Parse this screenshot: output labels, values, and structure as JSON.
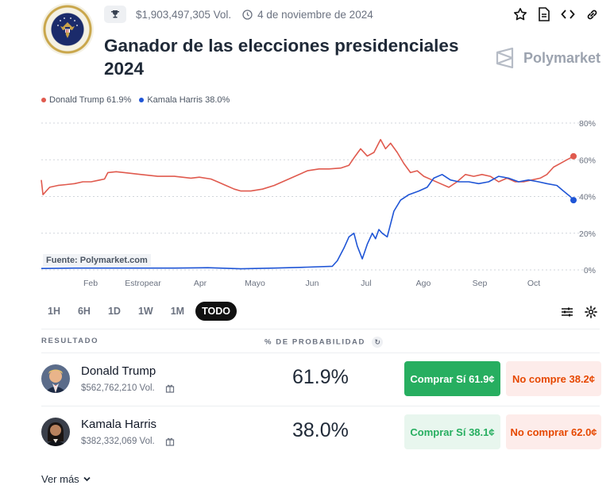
{
  "header": {
    "volume": "$1,903,497,305 Vol.",
    "date": "4 de noviembre de 2024",
    "title": "Ganador de las elecciones presidenciales 2024",
    "brand": "Polymarket",
    "icons": [
      "trophy-icon",
      "clock-icon",
      "star-icon",
      "document-icon",
      "code-icon",
      "link-icon"
    ]
  },
  "legend": [
    {
      "label": "Donald Trump 61.9%",
      "color": "#e05a4e"
    },
    {
      "label": "Kamala Harris 38.0%",
      "color": "#1f55d6"
    }
  ],
  "chart_data": {
    "type": "line",
    "x_ticks": [
      "Feb",
      "Estropear",
      "Apr",
      "Mayo",
      "Jun",
      "Jul",
      "Ago",
      "Sep",
      "Oct"
    ],
    "y_ticks": [
      "0%",
      "20%",
      "40%",
      "60%",
      "80%"
    ],
    "ylim": [
      0,
      80
    ],
    "source": "Fuente: Polymarket.com",
    "series": [
      {
        "name": "Donald Trump",
        "color": "#e05a4e",
        "values": [
          [
            0,
            49
          ],
          [
            1,
            41
          ],
          [
            5,
            45
          ],
          [
            10,
            46
          ],
          [
            15,
            46.5
          ],
          [
            20,
            47
          ],
          [
            25,
            48
          ],
          [
            30,
            48
          ],
          [
            38,
            49.5
          ],
          [
            40,
            53
          ],
          [
            45,
            53.5
          ],
          [
            50,
            53
          ],
          [
            60,
            52
          ],
          [
            70,
            51
          ],
          [
            80,
            51
          ],
          [
            90,
            50
          ],
          [
            95,
            50.5
          ],
          [
            102,
            49.5
          ],
          [
            106,
            48
          ],
          [
            111,
            46
          ],
          [
            116,
            44
          ],
          [
            120,
            43
          ],
          [
            126,
            43
          ],
          [
            133,
            44
          ],
          [
            140,
            46
          ],
          [
            150,
            50
          ],
          [
            160,
            54
          ],
          [
            167,
            55
          ],
          [
            173,
            55
          ],
          [
            180,
            55.5
          ],
          [
            185,
            57
          ],
          [
            188,
            61
          ],
          [
            192,
            66
          ],
          [
            196,
            62
          ],
          [
            200,
            64
          ],
          [
            204,
            71
          ],
          [
            207,
            66
          ],
          [
            210,
            69
          ],
          [
            214,
            64
          ],
          [
            218,
            58
          ],
          [
            222,
            53
          ],
          [
            226,
            54
          ],
          [
            230,
            51
          ],
          [
            235,
            49
          ],
          [
            240,
            47
          ],
          [
            245,
            45
          ],
          [
            250,
            48
          ],
          [
            255,
            52
          ],
          [
            260,
            51
          ],
          [
            265,
            52
          ],
          [
            270,
            51
          ],
          [
            275,
            48
          ],
          [
            280,
            50
          ],
          [
            285,
            48
          ],
          [
            290,
            48
          ],
          [
            295,
            49
          ],
          [
            300,
            50
          ],
          [
            304,
            52
          ],
          [
            308,
            56
          ],
          [
            312,
            58
          ],
          [
            316,
            60
          ],
          [
            320,
            61.9
          ]
        ]
      },
      {
        "name": "Kamala Harris",
        "color": "#1f55d6",
        "values": [
          [
            0,
            0.8
          ],
          [
            20,
            1
          ],
          [
            40,
            1
          ],
          [
            60,
            1
          ],
          [
            80,
            1
          ],
          [
            100,
            1.2
          ],
          [
            120,
            0.6
          ],
          [
            140,
            1
          ],
          [
            160,
            1.5
          ],
          [
            175,
            2
          ],
          [
            178,
            5
          ],
          [
            182,
            12
          ],
          [
            185,
            18
          ],
          [
            188,
            20
          ],
          [
            190,
            13
          ],
          [
            193,
            6
          ],
          [
            196,
            14
          ],
          [
            199,
            20
          ],
          [
            201,
            17
          ],
          [
            203,
            22
          ],
          [
            205,
            20
          ],
          [
            208,
            18
          ],
          [
            212,
            32
          ],
          [
            216,
            38
          ],
          [
            221,
            41
          ],
          [
            227,
            43
          ],
          [
            232,
            45
          ],
          [
            236,
            50
          ],
          [
            241,
            52
          ],
          [
            246,
            49
          ],
          [
            251,
            48
          ],
          [
            257,
            48
          ],
          [
            263,
            47
          ],
          [
            269,
            48
          ],
          [
            275,
            51
          ],
          [
            281,
            50
          ],
          [
            287,
            48
          ],
          [
            293,
            49
          ],
          [
            299,
            48
          ],
          [
            304,
            47
          ],
          [
            310,
            46
          ],
          [
            314,
            43
          ],
          [
            318,
            40
          ],
          [
            320,
            38.0
          ]
        ]
      }
    ]
  },
  "ranges": [
    "1H",
    "6H",
    "1D",
    "1W",
    "1M",
    "TODO"
  ],
  "active_range": "TODO",
  "table": {
    "col_outcome": "RESULTADO",
    "col_probability": "% DE PROBABILIDAD",
    "rows": [
      {
        "name": "Donald Trump",
        "volume": "$562,762,210 Vol.",
        "probability": "61.9%",
        "buy_yes": "Comprar Sí 61.9¢",
        "buy_no": "No compre 38.2¢"
      },
      {
        "name": "Kamala Harris",
        "volume": "$382,332,069 Vol.",
        "probability": "38.0%",
        "buy_yes": "Comprar Sí 38.1¢",
        "buy_no": "No comprar 62.0¢"
      }
    ],
    "see_more": "Ver más"
  }
}
